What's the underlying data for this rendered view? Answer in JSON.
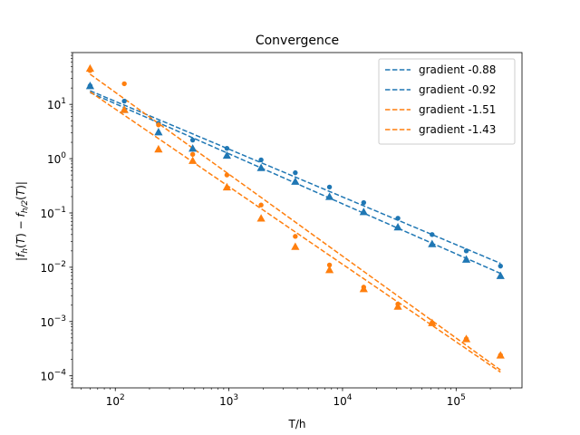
{
  "chart_data": {
    "type": "scatter",
    "title": "Convergence",
    "xlabel": "T/h",
    "ylabel": "|f_h(T) − f_h/2(T)|",
    "xscale": "log",
    "yscale": "log",
    "xlim": [
      42,
      380000
    ],
    "ylim": [
      6e-05,
      90
    ],
    "x_ticks": [
      {
        "value": 100,
        "base": "10",
        "exp": "2"
      },
      {
        "value": 1000,
        "base": "10",
        "exp": "3"
      },
      {
        "value": 10000,
        "base": "10",
        "exp": "4"
      },
      {
        "value": 100000,
        "base": "10",
        "exp": "5"
      }
    ],
    "y_ticks": [
      {
        "value": 0.0001,
        "base": "10",
        "exp": "−4"
      },
      {
        "value": 0.001,
        "base": "10",
        "exp": "−3"
      },
      {
        "value": 0.01,
        "base": "10",
        "exp": "−2"
      },
      {
        "value": 0.1,
        "base": "10",
        "exp": "−1"
      },
      {
        "value": 1,
        "base": "10",
        "exp": "0"
      },
      {
        "value": 10,
        "base": "10",
        "exp": "1"
      }
    ],
    "legend_position": "upper right",
    "grid": false,
    "colors": {
      "blue": "#1f77b4",
      "orange": "#ff7f0e"
    },
    "series": [
      {
        "name": "",
        "color": "#1f77b4",
        "marker": "circle",
        "x": [
          60,
          120,
          240,
          480,
          960,
          1920,
          3840,
          7680,
          15360,
          30720,
          61440,
          122880,
          245760
        ],
        "y": [
          22,
          11.5,
          4.5,
          2.2,
          1.55,
          0.95,
          0.55,
          0.3,
          0.155,
          0.08,
          0.04,
          0.02,
          0.0105
        ]
      },
      {
        "name": "",
        "color": "#1f77b4",
        "marker": "triangle",
        "x": [
          60,
          120,
          240,
          480,
          960,
          1920,
          3840,
          7680,
          15360,
          30720,
          61440,
          122880,
          245760
        ],
        "y": [
          22,
          8,
          3.1,
          1.55,
          1.15,
          0.68,
          0.38,
          0.2,
          0.105,
          0.055,
          0.027,
          0.014,
          0.007
        ]
      },
      {
        "name": "",
        "color": "#ff7f0e",
        "marker": "circle",
        "x": [
          60,
          120,
          240,
          480,
          960,
          1920,
          3840,
          7680,
          15360,
          30720,
          61440,
          122880,
          245760
        ],
        "y": [
          42,
          24,
          4.2,
          1.2,
          0.5,
          0.14,
          0.037,
          0.011,
          0.0043,
          0.0021,
          0.00095,
          0.00048,
          0.00024
        ]
      },
      {
        "name": "",
        "color": "#ff7f0e",
        "marker": "triangle",
        "x": [
          60,
          120,
          240,
          480,
          960,
          1920,
          3840,
          7680,
          15360,
          30720,
          61440,
          122880,
          245760
        ],
        "y": [
          46,
          8,
          1.5,
          0.92,
          0.3,
          0.08,
          0.024,
          0.009,
          0.004,
          0.0019,
          0.00095,
          0.00048,
          0.00024
        ]
      }
    ],
    "fit_lines": [
      {
        "label": "gradient -0.88",
        "color": "#1f77b4",
        "slope": -0.88,
        "x": [
          60,
          245760
        ],
        "y": [
          17.8,
          0.0118
        ]
      },
      {
        "label": "gradient -0.92",
        "color": "#1f77b4",
        "slope": -0.92,
        "x": [
          60,
          245760
        ],
        "y": [
          16.5,
          0.0077
        ]
      },
      {
        "label": "gradient -1.51",
        "color": "#ff7f0e",
        "slope": -1.51,
        "x": [
          60,
          245760
        ],
        "y": [
          36,
          0.000128
        ]
      },
      {
        "label": "gradient -1.43",
        "color": "#ff7f0e",
        "slope": -1.43,
        "x": [
          60,
          245760
        ],
        "y": [
          17,
          0.000117
        ]
      }
    ]
  }
}
